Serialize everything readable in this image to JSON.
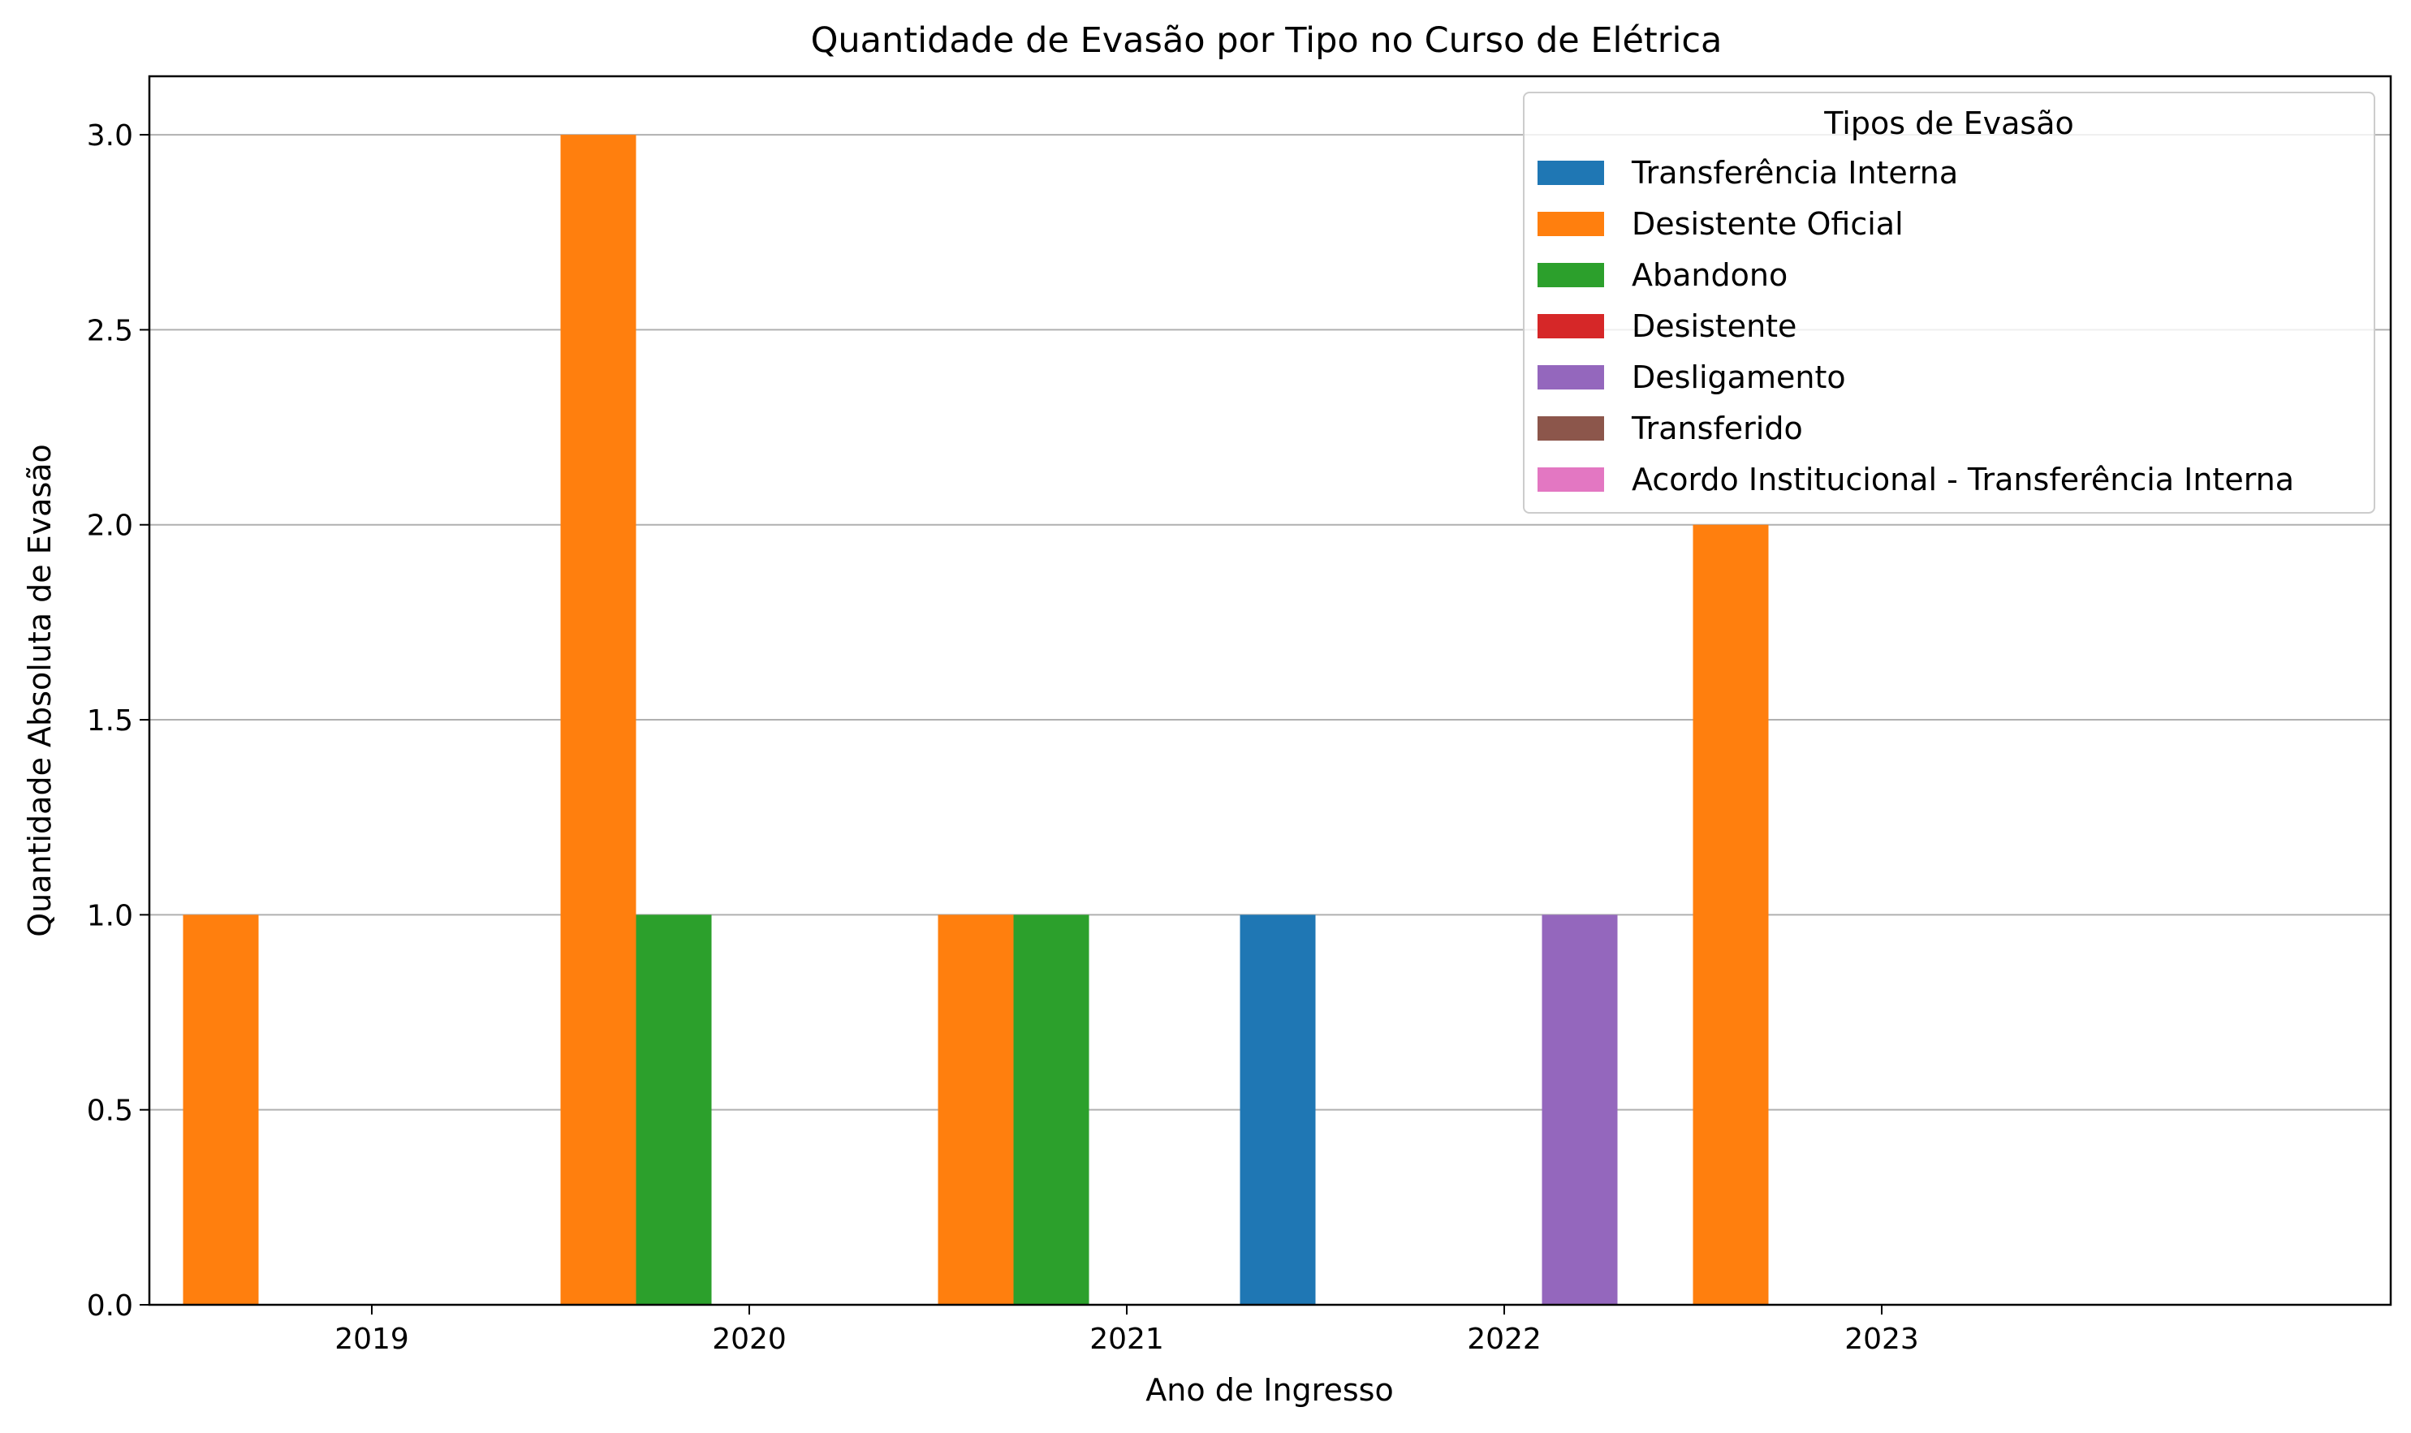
{
  "chart_data": {
    "type": "bar",
    "title": "Quantidade de Evasão por Tipo no Curso de Elétrica",
    "xlabel": "Ano de Ingresso",
    "ylabel": "Quantidade Absoluta de Evasão",
    "categories": [
      "2019",
      "2020",
      "2021",
      "2022",
      "2023"
    ],
    "ylim": [
      0,
      3.15
    ],
    "yticks": [
      "0.0",
      "0.5",
      "1.0",
      "1.5",
      "2.0",
      "2.5",
      "3.0"
    ],
    "grid": "horizontal",
    "legend": {
      "title": "Tipos de Evasão",
      "placement": "top-right"
    },
    "series": [
      {
        "name": "Transferência Interna",
        "color": "#1f77b4",
        "values": [
          0,
          0,
          0,
          1,
          0
        ]
      },
      {
        "name": "Desistente Oficial",
        "color": "#ff7f0e",
        "values": [
          1,
          3,
          1,
          0,
          2
        ]
      },
      {
        "name": "Abandono",
        "color": "#2ca02c",
        "values": [
          0,
          1,
          1,
          0,
          0
        ]
      },
      {
        "name": "Desistente",
        "color": "#d62728",
        "values": [
          0,
          0,
          0,
          0,
          0
        ]
      },
      {
        "name": "Desligamento",
        "color": "#9467bd",
        "values": [
          0,
          0,
          0,
          1,
          0
        ]
      },
      {
        "name": "Transferido",
        "color": "#8c564b",
        "values": [
          0,
          0,
          0,
          0,
          0
        ]
      },
      {
        "name": "Acordo Institucional - Transferência Interna",
        "color": "#e377c2",
        "values": [
          0,
          0,
          0,
          0,
          0
        ]
      }
    ]
  }
}
